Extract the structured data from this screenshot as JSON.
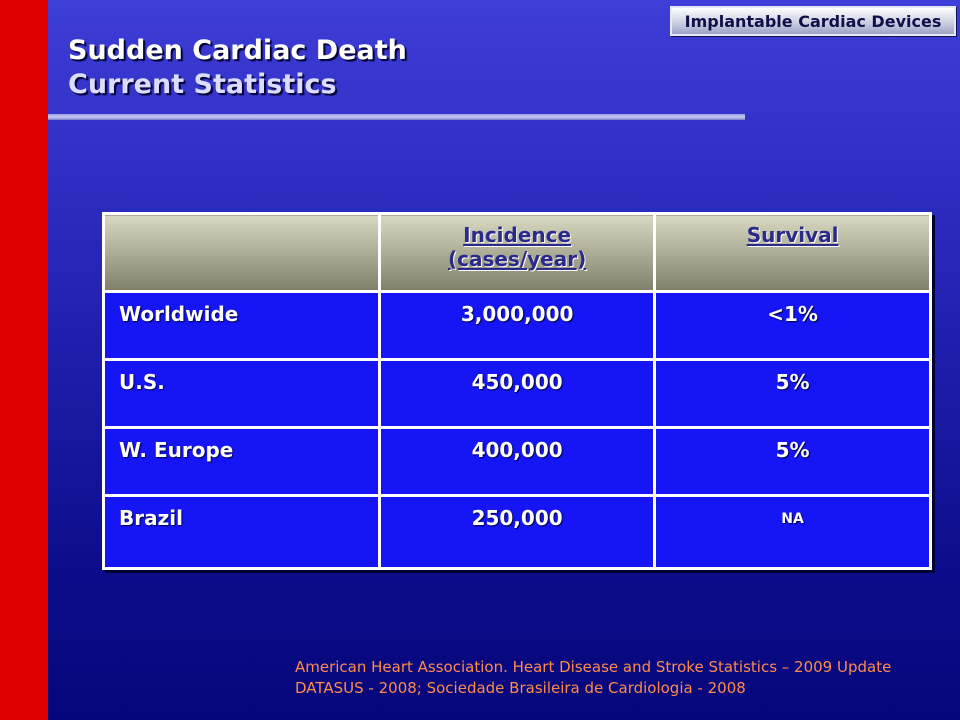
{
  "header": {
    "badge": "Implantable Cardiac Devices",
    "title_line1": "Sudden Cardiac Death",
    "title_line2": "Current Statistics"
  },
  "table": {
    "headers": [
      "",
      "Incidence (cases/year)",
      "Survival"
    ],
    "incidence_line1": "Incidence",
    "incidence_line2": "(cases/year)",
    "survival": "Survival",
    "rows": [
      {
        "region": "Worldwide",
        "incidence": "3,000,000",
        "survival": "<1%"
      },
      {
        "region": "U.S.",
        "incidence": "450,000",
        "survival": "5%"
      },
      {
        "region": "W. Europe",
        "incidence": "400,000",
        "survival": "5%"
      },
      {
        "region": "Brazil",
        "incidence": "250,000",
        "survival": "NA"
      }
    ]
  },
  "references": [
    "American Heart Association. Heart Disease and Stroke Statistics – 2009 Update",
    "DATASUS - 2008; Sociedade Brasileira de Cardiologia - 2008"
  ],
  "colors": {
    "background": "#2020b0",
    "left_bar": "#dd0000",
    "table_cell": "#1515f5",
    "reference_text": "#ff8a4a"
  }
}
